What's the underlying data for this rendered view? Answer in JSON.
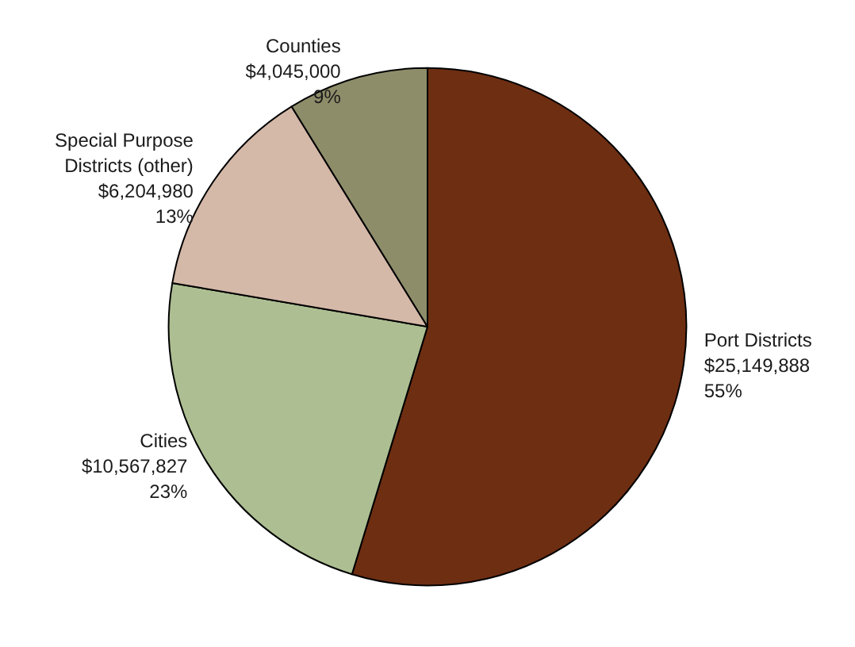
{
  "chart_data": {
    "type": "pie",
    "categories": [
      "Port Districts",
      "Cities",
      "Special Purpose\nDistricts (other)",
      "Counties"
    ],
    "values": [
      25149888,
      10567827,
      6204980,
      4045000
    ],
    "colors": [
      "#6e2e12",
      "#adbf92",
      "#d4b8a8",
      "#8e8d6a"
    ],
    "value_labels": [
      "$25,149,888\n55%",
      "$10,567,827\n23%",
      "$6,204,980\n13%",
      "$4,045,000\n9%"
    ],
    "legend": false
  }
}
